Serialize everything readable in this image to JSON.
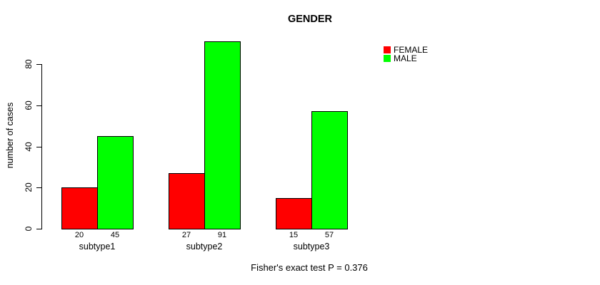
{
  "chart_data": {
    "type": "bar",
    "title": "GENDER",
    "ylabel": "number of cases",
    "xlabel": "",
    "categories": [
      "subtype1",
      "subtype2",
      "subtype3"
    ],
    "series": [
      {
        "name": "FEMALE",
        "color": "#ff0000",
        "values": [
          20,
          27,
          15
        ]
      },
      {
        "name": "MALE",
        "color": "#00ff00",
        "values": [
          45,
          91,
          57
        ]
      }
    ],
    "yticks": [
      0,
      20,
      40,
      60,
      80
    ],
    "ylim": [
      0,
      91
    ],
    "grid": false,
    "legend_position": "top-right",
    "values_printed_under_axis": true
  },
  "footer": {
    "text": "Fisher's exact test P = 0.376"
  }
}
